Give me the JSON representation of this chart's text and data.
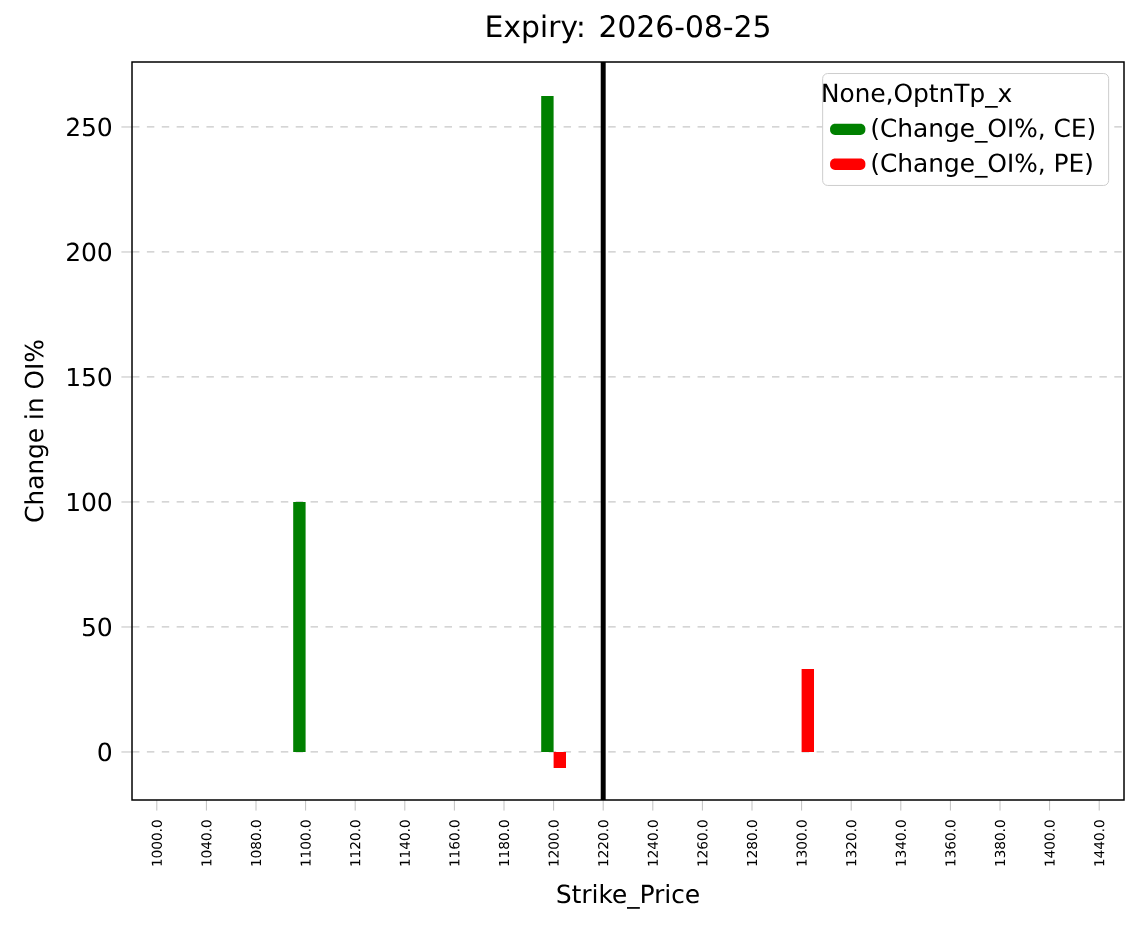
{
  "chart_data": {
    "type": "bar",
    "title": "Expiry: 2026-08-25",
    "xlabel": "Strike_Price",
    "ylabel": "Change in OI%",
    "legend_title": "None,OptnTp_x",
    "categories": [
      "1000.0",
      "1040.0",
      "1080.0",
      "1100.0",
      "1120.0",
      "1140.0",
      "1160.0",
      "1180.0",
      "1200.0",
      "1220.0",
      "1240.0",
      "1260.0",
      "1280.0",
      "1300.0",
      "1320.0",
      "1340.0",
      "1360.0",
      "1380.0",
      "1400.0",
      "1440.0"
    ],
    "series": [
      {
        "name": "(Change_OI%, CE)",
        "color": "#008000",
        "values": [
          null,
          null,
          null,
          100,
          null,
          null,
          null,
          null,
          262.4,
          null,
          null,
          null,
          null,
          null,
          null,
          null,
          null,
          null,
          null,
          null
        ]
      },
      {
        "name": "(Change_OI%, PE)",
        "color": "#ff0000",
        "values": [
          null,
          null,
          null,
          null,
          null,
          null,
          null,
          null,
          -6.4,
          null,
          null,
          null,
          null,
          33.2,
          null,
          null,
          null,
          null,
          null,
          null
        ]
      }
    ],
    "ylim": [
      -19.2,
      276
    ],
    "yticks": [
      0,
      50,
      100,
      150,
      200,
      250
    ],
    "grid": "y",
    "legend": "top right",
    "ref_lines": [
      {
        "axis": "x",
        "value": "1220.0",
        "color": "#000000"
      }
    ]
  }
}
